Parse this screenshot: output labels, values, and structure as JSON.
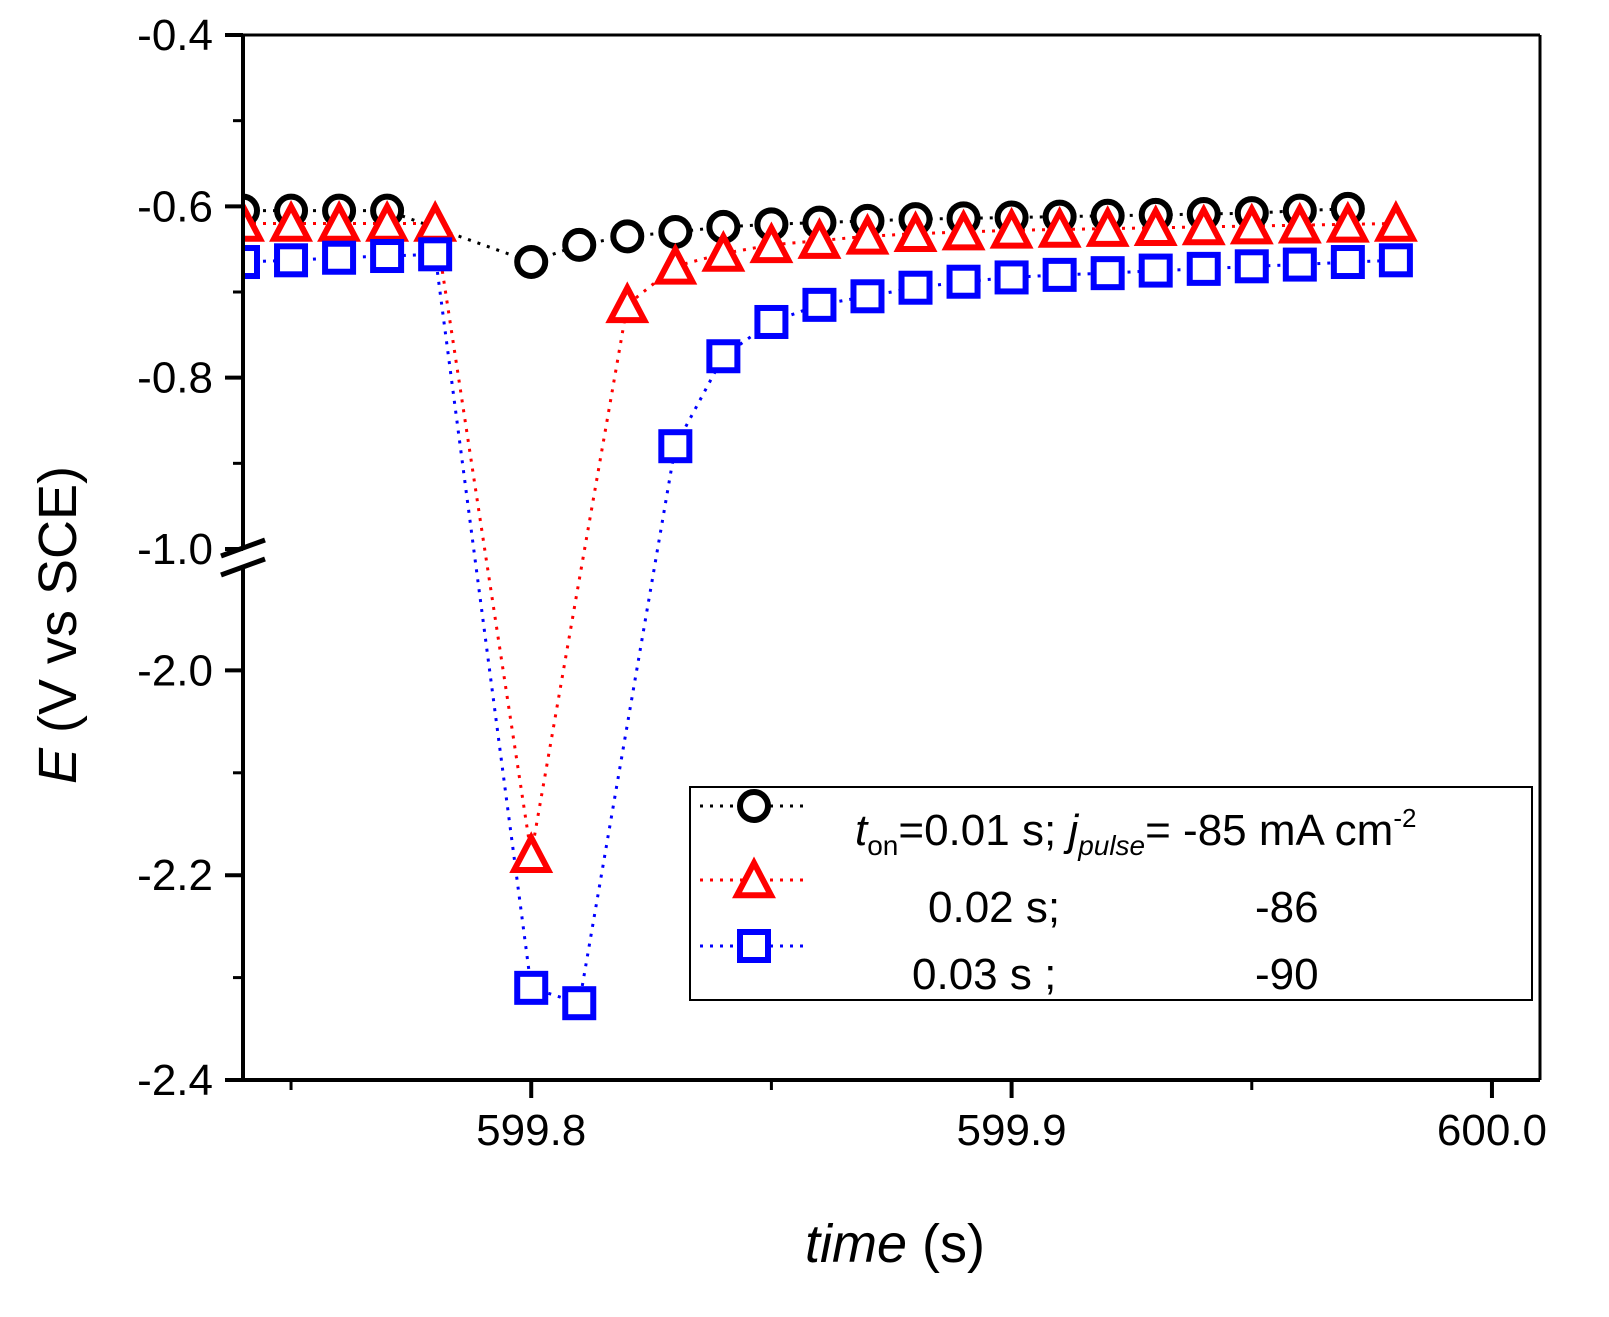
{
  "chart_data": {
    "type": "scatter",
    "xlabel_italic": "time",
    "xlabel_unit": " (s)",
    "ylabel_italic": "E",
    "ylabel_unit": " (V vs SCE)",
    "xlim": [
      599.74,
      600.01
    ],
    "ylim_upper": [
      -1.0,
      -0.4
    ],
    "ylim_lower": [
      -2.4,
      -1.9
    ],
    "y_axis_break": true,
    "x_ticks": [
      "599.8",
      "599.9",
      "600.0"
    ],
    "y_ticks_upper": [
      "-0.4",
      "-0.6",
      "-0.8",
      "-1.0"
    ],
    "y_ticks_lower": [
      "-2.0",
      "-2.2",
      "-2.4"
    ],
    "legend": {
      "placement": "bottom-right",
      "rows": [
        {
          "t_sym": "t",
          "t_sub": "on",
          "t_value": "=0.01 s; ",
          "j_sym": "j",
          "j_sub": "pulse",
          "j_value": "= -85 mA cm",
          "j_sup": "-2"
        },
        {
          "t_value": "0.02 s;",
          "j_value": "-86"
        },
        {
          "t_value": "0.03 s ;",
          "j_value": "-90"
        }
      ]
    },
    "series": [
      {
        "name": "t_on=0.01 s; j_pulse=-85 mA cm-2",
        "color": "#000000",
        "marker": "circle",
        "x": [
          599.74,
          599.75,
          599.76,
          599.77,
          599.8,
          599.81,
          599.82,
          599.83,
          599.84,
          599.85,
          599.86,
          599.87,
          599.88,
          599.89,
          599.9,
          599.91,
          599.92,
          599.93,
          599.94,
          599.95,
          599.96,
          599.97
        ],
        "y": [
          -0.605,
          -0.605,
          -0.605,
          -0.605,
          -0.665,
          -0.645,
          -0.635,
          -0.63,
          -0.624,
          -0.621,
          -0.619,
          -0.617,
          -0.615,
          -0.614,
          -0.613,
          -0.612,
          -0.611,
          -0.61,
          -0.609,
          -0.608,
          -0.605,
          -0.603
        ]
      },
      {
        "name": "t_on=0.02 s; j_pulse=-86",
        "color": "#ff0000",
        "marker": "triangle",
        "x": [
          599.74,
          599.75,
          599.76,
          599.77,
          599.78,
          599.8,
          599.82,
          599.83,
          599.84,
          599.85,
          599.86,
          599.87,
          599.88,
          599.89,
          599.9,
          599.91,
          599.92,
          599.93,
          599.94,
          599.95,
          599.96,
          599.97,
          599.98
        ],
        "y": [
          -0.62,
          -0.62,
          -0.62,
          -0.62,
          -0.62,
          -2.18,
          -0.715,
          -0.67,
          -0.655,
          -0.645,
          -0.64,
          -0.635,
          -0.632,
          -0.63,
          -0.628,
          -0.627,
          -0.626,
          -0.625,
          -0.624,
          -0.623,
          -0.622,
          -0.621,
          -0.62
        ]
      },
      {
        "name": "t_on=0.03 s; j_pulse=-90",
        "color": "#0000ff",
        "marker": "square",
        "x": [
          599.74,
          599.75,
          599.76,
          599.77,
          599.78,
          599.8,
          599.81,
          599.83,
          599.84,
          599.85,
          599.86,
          599.87,
          599.88,
          599.89,
          599.9,
          599.91,
          599.92,
          599.93,
          599.94,
          599.95,
          599.96,
          599.97,
          599.98
        ],
        "y": [
          -0.665,
          -0.663,
          -0.66,
          -0.658,
          -0.656,
          -2.31,
          -2.325,
          -0.88,
          -0.775,
          -0.735,
          -0.715,
          -0.705,
          -0.695,
          -0.688,
          -0.683,
          -0.68,
          -0.678,
          -0.675,
          -0.673,
          -0.67,
          -0.668,
          -0.665,
          -0.663
        ]
      }
    ]
  }
}
